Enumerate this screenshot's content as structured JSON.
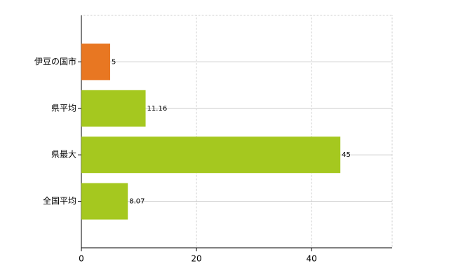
{
  "chart_data": {
    "type": "bar",
    "orientation": "horizontal",
    "categories": [
      "伊豆の国市",
      "県平均",
      "県最大",
      "全国平均"
    ],
    "values": [
      5,
      11.16,
      45,
      8.07
    ],
    "colors": [
      "#e87722",
      "#a5c81f",
      "#a5c81f",
      "#a5c81f"
    ],
    "xlim": [
      0,
      54
    ],
    "xticks": [
      0,
      20,
      40
    ],
    "grid": true
  }
}
